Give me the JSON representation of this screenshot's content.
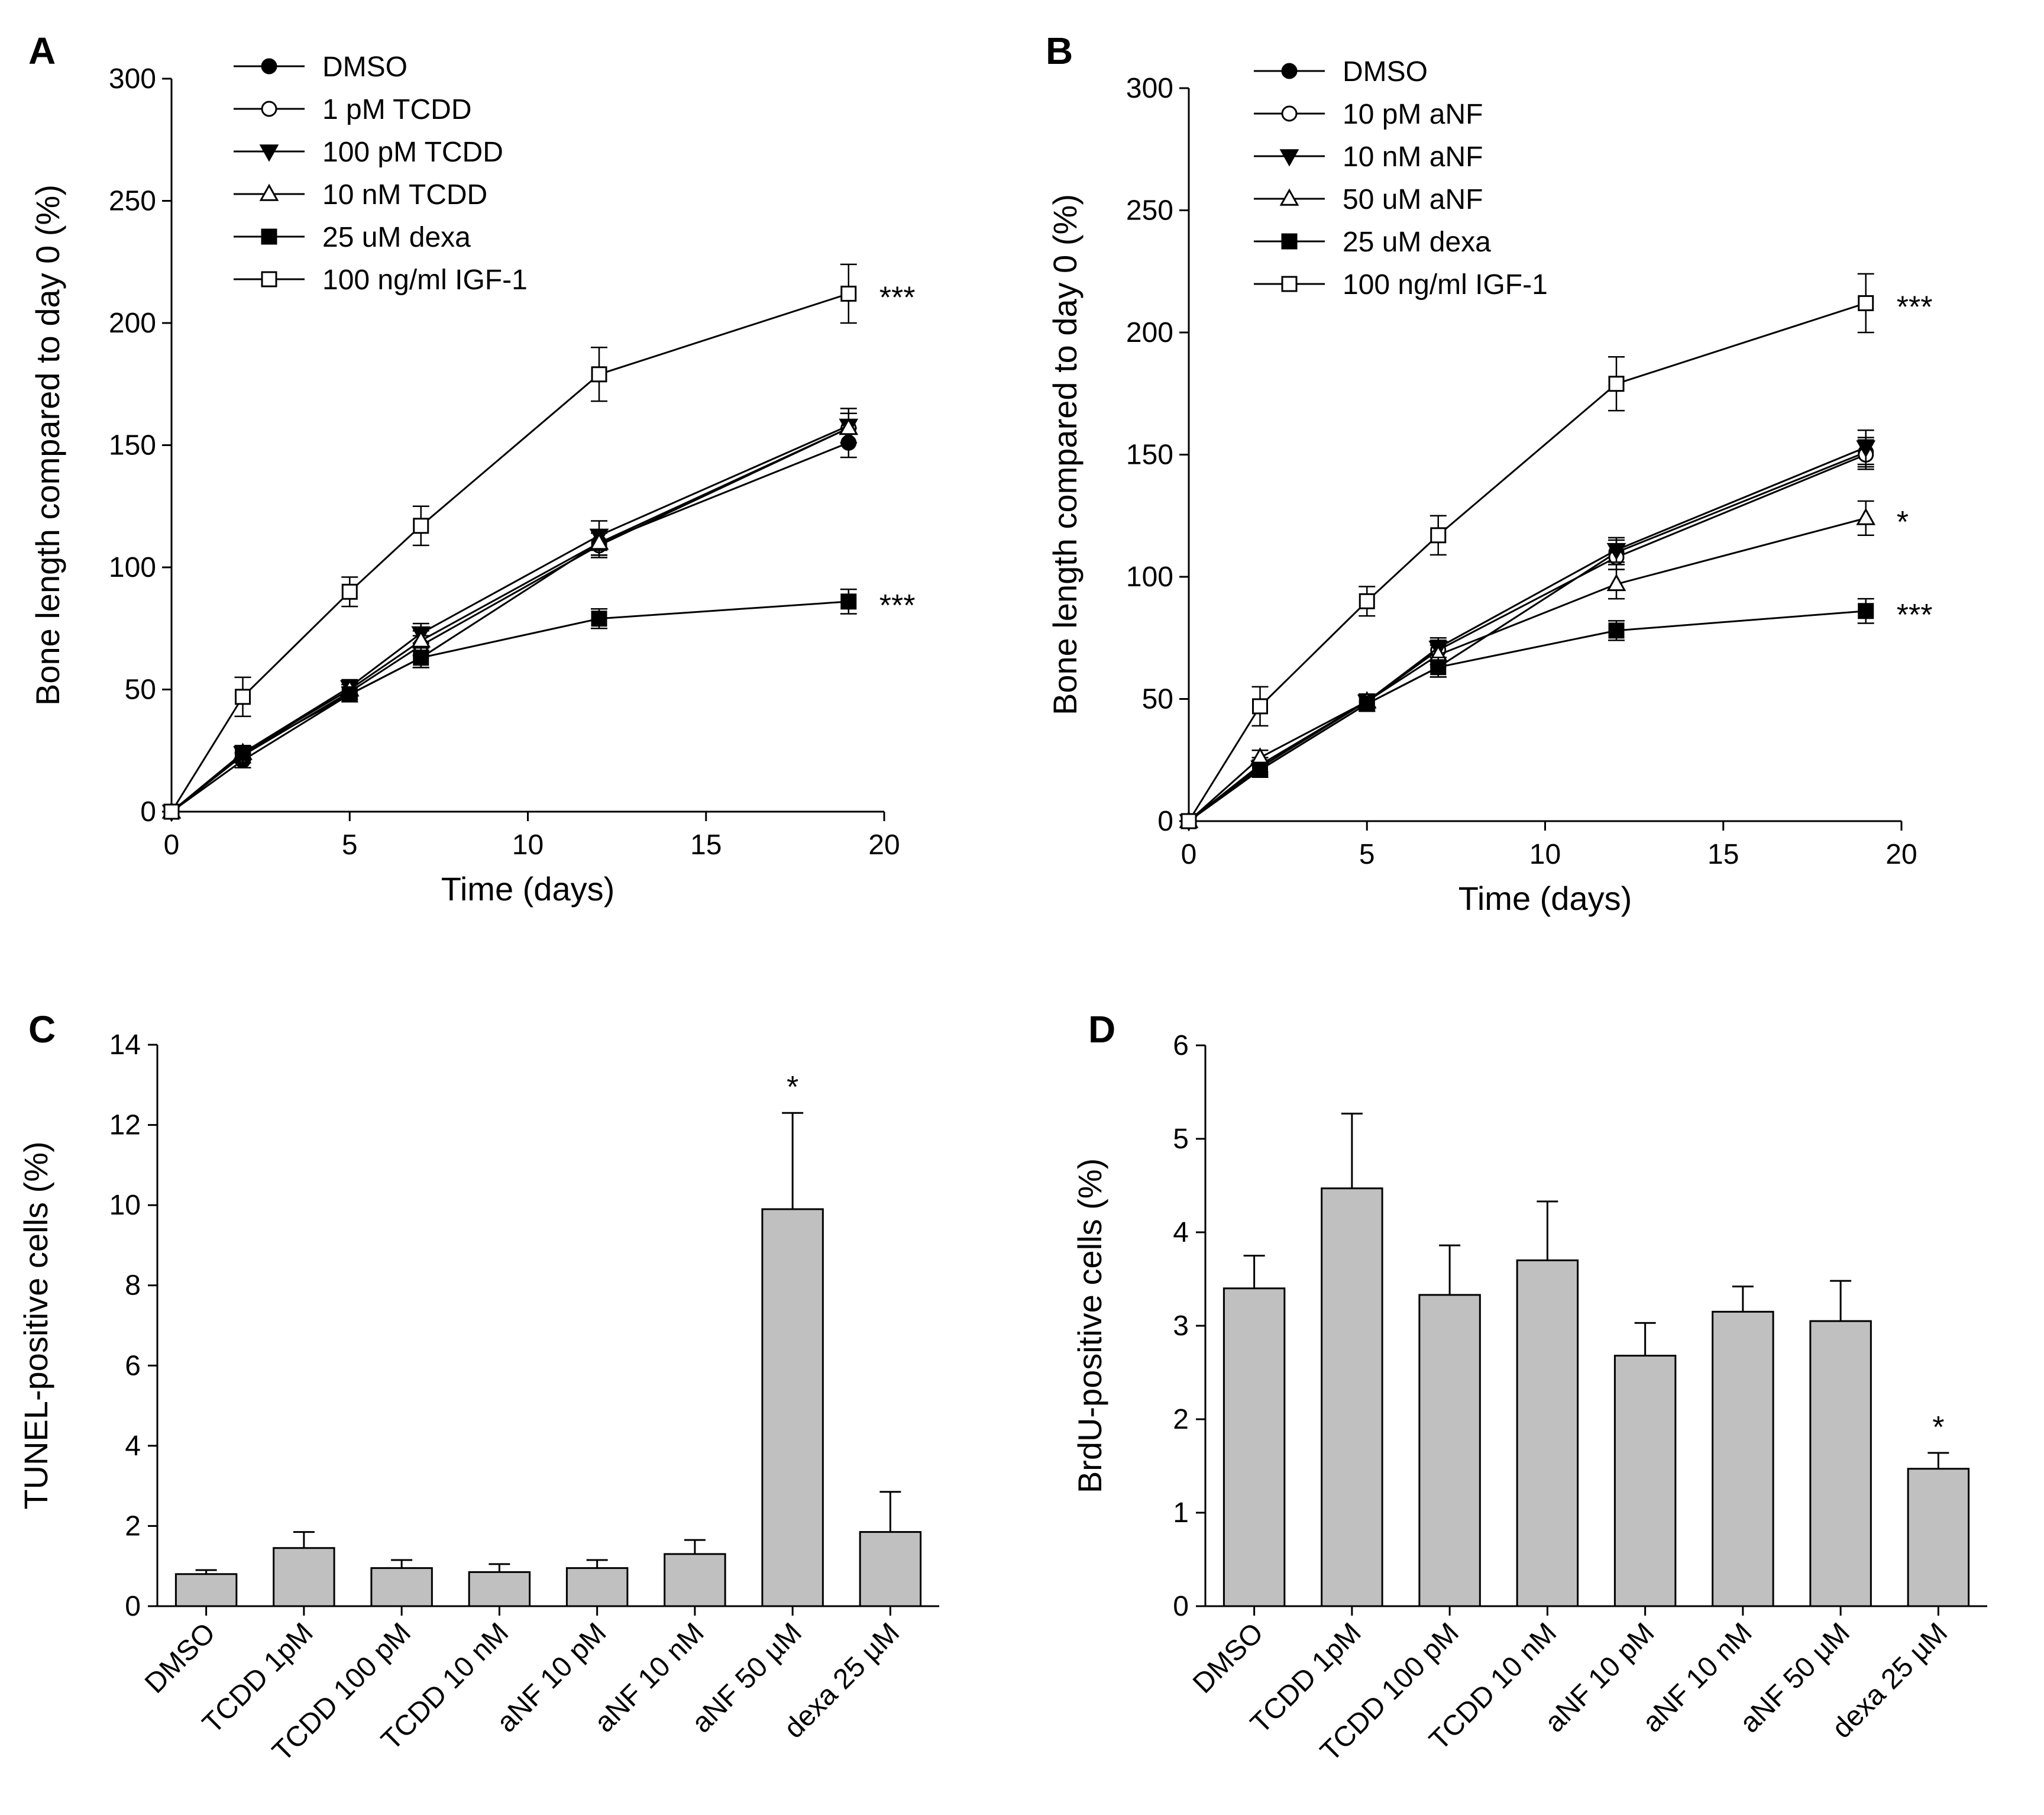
{
  "chart_data": [
    {
      "panel": "A",
      "type": "line",
      "xlabel": "Time (days)",
      "ylabel": "Bone length compared to day 0 (%)",
      "xlim": [
        0,
        20
      ],
      "ylim": [
        0,
        300
      ],
      "xticks": [
        0,
        5,
        10,
        15,
        20
      ],
      "yticks": [
        0,
        50,
        100,
        150,
        200,
        250,
        300
      ],
      "x": [
        0,
        2,
        5,
        7,
        12,
        19
      ],
      "series": [
        {
          "name": "DMSO",
          "marker": "filled-circle",
          "values": [
            0,
            21,
            48,
            63,
            110,
            151
          ],
          "errors": [
            0,
            3,
            3,
            4,
            5,
            6
          ]
        },
        {
          "name": "1 pM TCDD",
          "marker": "open-circle",
          "values": [
            0,
            23,
            49,
            68,
            109,
            157
          ],
          "errors": [
            0,
            3,
            3,
            4,
            5,
            6
          ]
        },
        {
          "name": "100 pM TCDD",
          "marker": "filled-triangle-down",
          "values": [
            0,
            24,
            51,
            73,
            113,
            158
          ],
          "errors": [
            0,
            3,
            3,
            4,
            6,
            7
          ]
        },
        {
          "name": "10 nM TCDD",
          "marker": "open-triangle-up",
          "values": [
            0,
            24,
            50,
            70,
            110,
            157
          ],
          "errors": [
            0,
            3,
            3,
            4,
            5,
            6
          ]
        },
        {
          "name": "25 uM dexa",
          "marker": "filled-square",
          "values": [
            0,
            24,
            48,
            63,
            79,
            86
          ],
          "errors": [
            0,
            3,
            3,
            4,
            4,
            5
          ]
        },
        {
          "name": "100 ng/ml IGF-1",
          "marker": "open-square",
          "values": [
            0,
            47,
            90,
            117,
            179,
            212
          ],
          "errors": [
            0,
            8,
            6,
            8,
            11,
            12
          ]
        }
      ],
      "annotations": [
        {
          "text": "***",
          "series": "100 ng/ml IGF-1"
        },
        {
          "text": "***",
          "series": "25 uM dexa"
        }
      ]
    },
    {
      "panel": "B",
      "type": "line",
      "xlabel": "Time (days)",
      "ylabel": "Bone length compared to day 0 (%)",
      "xlim": [
        0,
        20
      ],
      "ylim": [
        0,
        300
      ],
      "xticks": [
        0,
        5,
        10,
        15,
        20
      ],
      "yticks": [
        0,
        50,
        100,
        150,
        200,
        250,
        300
      ],
      "x": [
        0,
        2,
        5,
        7,
        12,
        19
      ],
      "series": [
        {
          "name": "DMSO",
          "marker": "filled-circle",
          "values": [
            0,
            21,
            48,
            63,
            110,
            151
          ],
          "errors": [
            0,
            3,
            3,
            4,
            5,
            6
          ]
        },
        {
          "name": "10 pM aNF",
          "marker": "open-circle",
          "values": [
            0,
            23,
            49,
            70,
            108,
            150
          ],
          "errors": [
            0,
            3,
            3,
            4,
            5,
            6
          ]
        },
        {
          "name": "10 nM aNF",
          "marker": "filled-triangle-down",
          "values": [
            0,
            22,
            49,
            71,
            111,
            153
          ],
          "errors": [
            0,
            3,
            3,
            4,
            5,
            7
          ]
        },
        {
          "name": "50 uM aNF",
          "marker": "open-triangle-up",
          "values": [
            0,
            26,
            49,
            68,
            97,
            124
          ],
          "errors": [
            0,
            3,
            3,
            4,
            6,
            7
          ]
        },
        {
          "name": "25 uM dexa",
          "marker": "filled-square",
          "values": [
            0,
            21,
            48,
            63,
            78,
            86
          ],
          "errors": [
            0,
            3,
            3,
            4,
            4,
            5
          ]
        },
        {
          "name": "100 ng/ml IGF-1",
          "marker": "open-square",
          "values": [
            0,
            47,
            90,
            117,
            179,
            212
          ],
          "errors": [
            0,
            8,
            6,
            8,
            11,
            12
          ]
        }
      ],
      "annotations": [
        {
          "text": "***",
          "series": "100 ng/ml IGF-1"
        },
        {
          "text": "*",
          "series": "50 uM aNF"
        },
        {
          "text": "***",
          "series": "25 uM dexa"
        }
      ]
    },
    {
      "panel": "C",
      "type": "bar",
      "ylabel": "TUNEL-positive cells (%)",
      "ylim": [
        0,
        14
      ],
      "yticks": [
        0,
        2,
        4,
        6,
        8,
        10,
        12,
        14
      ],
      "categories": [
        "DMSO",
        "TCDD 1pM",
        "TCDD 100 pM",
        "TCDD 10 nM",
        "aNF 10 pM",
        "aNF 10 nM",
        "aNF 50 µM",
        "dexa 25 µM"
      ],
      "values": [
        0.8,
        1.45,
        0.95,
        0.85,
        0.95,
        1.3,
        9.9,
        1.85
      ],
      "errors": [
        0.1,
        0.4,
        0.2,
        0.2,
        0.2,
        0.35,
        2.4,
        1.0
      ],
      "annotations": [
        {
          "text": "*",
          "category": "aNF 50 µM"
        }
      ]
    },
    {
      "panel": "D",
      "type": "bar",
      "ylabel": "BrdU-positive cells (%)",
      "ylim": [
        0,
        6
      ],
      "yticks": [
        0,
        1,
        2,
        3,
        4,
        5,
        6
      ],
      "categories": [
        "DMSO",
        "TCDD 1pM",
        "TCDD 100 pM",
        "TCDD 10 nM",
        "aNF 10 pM",
        "aNF 10 nM",
        "aNF 50 µM",
        "dexa 25 µM"
      ],
      "values": [
        3.4,
        4.47,
        3.33,
        3.7,
        2.68,
        3.15,
        3.05,
        1.47
      ],
      "errors": [
        0.35,
        0.8,
        0.53,
        0.63,
        0.35,
        0.27,
        0.43,
        0.17
      ],
      "annotations": [
        {
          "text": "*",
          "category": "dexa 25 µM"
        }
      ]
    }
  ]
}
